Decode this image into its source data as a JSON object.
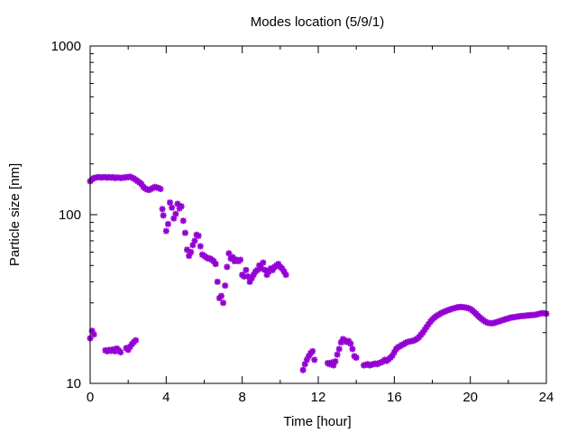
{
  "chart_data": {
    "type": "scatter",
    "title": "Modes location (5/9/1)",
    "xlabel": "Time [hour]",
    "ylabel": "Particle size [nm]",
    "xlim": [
      0,
      24
    ],
    "ylim": [
      10,
      1000
    ],
    "yscale": "log",
    "x_ticks": [
      0,
      4,
      8,
      12,
      16,
      20,
      24
    ],
    "x_tick_labels": [
      "0",
      "4",
      "8",
      "12",
      "16",
      "20",
      "24"
    ],
    "y_ticks": [
      10,
      100,
      1000
    ],
    "y_tick_labels": [
      "10",
      "100",
      "1000"
    ],
    "grid": false,
    "legend": false,
    "marker_color": "#9400d3",
    "series": [
      {
        "x": [
          0.0,
          0.1,
          0.2,
          0.3,
          0.4,
          0.5,
          0.6,
          0.7,
          0.8,
          0.9,
          1.0,
          1.1,
          1.2,
          1.3,
          1.4,
          1.5,
          1.6,
          1.7,
          1.8,
          1.9,
          2.0,
          2.1,
          2.2,
          2.3,
          2.4,
          2.5,
          2.6,
          2.7,
          2.8,
          2.9,
          3.0,
          3.1,
          3.2,
          3.3,
          3.4,
          3.5,
          3.6,
          3.7,
          3.8,
          3.85,
          4.0,
          4.1,
          4.2,
          4.3,
          4.4,
          4.5,
          4.6,
          4.7,
          4.8,
          4.9,
          5.0,
          5.1,
          5.2,
          5.3,
          5.4,
          5.5,
          5.6,
          5.7,
          5.8,
          5.9,
          6.0,
          6.1,
          6.2,
          6.3,
          6.4,
          6.5,
          6.6,
          6.7,
          6.8,
          6.9,
          7.0,
          7.1,
          7.2,
          7.3,
          7.4,
          7.5,
          7.6,
          7.7,
          7.8,
          7.9,
          8.0,
          8.1,
          8.2,
          8.3,
          8.4,
          8.5,
          8.6,
          8.7,
          8.8,
          8.9,
          9.0,
          9.1,
          9.2,
          9.3,
          9.4,
          9.5,
          9.6,
          9.7,
          9.8,
          9.9,
          10.0,
          10.1,
          10.2,
          10.3
        ],
        "y": [
          158,
          162,
          165,
          166,
          167,
          167,
          166,
          167,
          167,
          166,
          167,
          166,
          167,
          165,
          166,
          166,
          165,
          166,
          166,
          167,
          167,
          168,
          166,
          164,
          161,
          158,
          155,
          152,
          146,
          143,
          141,
          140,
          142,
          144,
          146,
          145,
          144,
          142,
          108,
          99,
          80,
          88,
          118,
          110,
          95,
          101,
          116,
          109,
          112,
          92,
          78,
          62,
          57,
          60,
          66,
          70,
          76,
          75,
          65,
          58,
          57,
          56,
          55,
          55,
          54,
          53,
          51,
          40,
          32,
          33,
          30,
          38,
          49,
          59,
          55,
          56,
          53,
          54,
          53,
          54,
          44,
          43,
          47,
          43,
          40,
          42,
          44,
          46,
          47,
          50,
          48,
          52,
          47,
          44,
          46,
          48,
          47,
          49,
          50,
          51,
          49,
          48,
          46,
          44
        ]
      },
      {
        "x": [
          0.0,
          0.1,
          0.2,
          0.8,
          0.9,
          1.0,
          1.1,
          1.2,
          1.3,
          1.4,
          1.5,
          1.6,
          1.9,
          2.0,
          2.1,
          2.2,
          2.3,
          2.4
        ],
        "y": [
          18.5,
          20.5,
          19.5,
          15.7,
          15.5,
          15.8,
          15.6,
          15.9,
          15.5,
          16.1,
          15.7,
          15.3,
          16.2,
          15.8,
          16.5,
          17.1,
          17.6,
          18.0
        ]
      },
      {
        "x": [
          11.2,
          11.3,
          11.4,
          11.5,
          11.6,
          11.7,
          11.8,
          12.5,
          12.6,
          12.7,
          12.8,
          12.9,
          13.0,
          13.1,
          13.2,
          13.3,
          13.4,
          13.5,
          13.6,
          13.7,
          13.8,
          13.9,
          14.0
        ],
        "y": [
          12.0,
          13.0,
          13.8,
          14.5,
          15.1,
          15.5,
          13.8,
          13.2,
          13.0,
          13.3,
          12.8,
          13.5,
          14.8,
          16.0,
          17.5,
          18.3,
          18.0,
          17.6,
          17.8,
          17.2,
          16.0,
          14.5,
          14.2
        ]
      },
      {
        "x": [
          14.4,
          14.5,
          14.6,
          14.7,
          14.8,
          14.9,
          15.0,
          15.1,
          15.2,
          15.3,
          15.4,
          15.5,
          15.6,
          15.7,
          15.8,
          15.9,
          16.0,
          16.1,
          16.2,
          16.3,
          16.4,
          16.5,
          16.6,
          16.7,
          16.8,
          16.9,
          17.0,
          17.1,
          17.2,
          17.3,
          17.4,
          17.5,
          17.6,
          17.7,
          17.8,
          17.9,
          18.0,
          18.1,
          18.2,
          18.3,
          18.4,
          18.5,
          18.6,
          18.7,
          18.8,
          18.9,
          19.0,
          19.1,
          19.2,
          19.3,
          19.4,
          19.5,
          19.6,
          19.7,
          19.8,
          19.9,
          20.0,
          20.1,
          20.2,
          20.3,
          20.4,
          20.5,
          20.6,
          20.7,
          20.8,
          20.9,
          21.0,
          21.1,
          21.2,
          21.3,
          21.4,
          21.5,
          21.6,
          21.7,
          21.8,
          21.9,
          22.0,
          22.1,
          22.2,
          22.3,
          22.4,
          22.5,
          22.6,
          22.7,
          22.8,
          22.9,
          23.0,
          23.1,
          23.2,
          23.3,
          23.4,
          23.5,
          23.6,
          23.7,
          23.8,
          23.9,
          24.0
        ],
        "y": [
          12.8,
          12.9,
          13.0,
          12.8,
          12.9,
          13.0,
          13.1,
          13.0,
          13.2,
          13.3,
          13.5,
          13.8,
          13.6,
          13.9,
          14.2,
          14.6,
          15.3,
          16.0,
          16.4,
          16.6,
          16.9,
          17.1,
          17.4,
          17.6,
          17.7,
          17.8,
          17.9,
          18.1,
          18.4,
          18.8,
          19.4,
          20.0,
          20.8,
          21.6,
          22.4,
          23.2,
          23.9,
          24.5,
          25.0,
          25.4,
          25.8,
          26.2,
          26.5,
          26.8,
          27.1,
          27.3,
          27.6,
          27.8,
          28.0,
          28.2,
          28.3,
          28.4,
          28.3,
          28.2,
          28.1,
          27.9,
          27.6,
          27.1,
          26.5,
          25.9,
          25.2,
          24.6,
          24.1,
          23.6,
          23.2,
          22.9,
          22.8,
          22.7,
          22.8,
          22.9,
          23.1,
          23.3,
          23.5,
          23.7,
          23.9,
          24.1,
          24.3,
          24.5,
          24.6,
          24.7,
          24.8,
          24.9,
          25.0,
          25.1,
          25.1,
          25.2,
          25.3,
          25.3,
          25.4,
          25.4,
          25.5,
          25.6,
          25.8,
          26.0,
          26.1,
          26.0,
          25.9
        ]
      }
    ]
  }
}
